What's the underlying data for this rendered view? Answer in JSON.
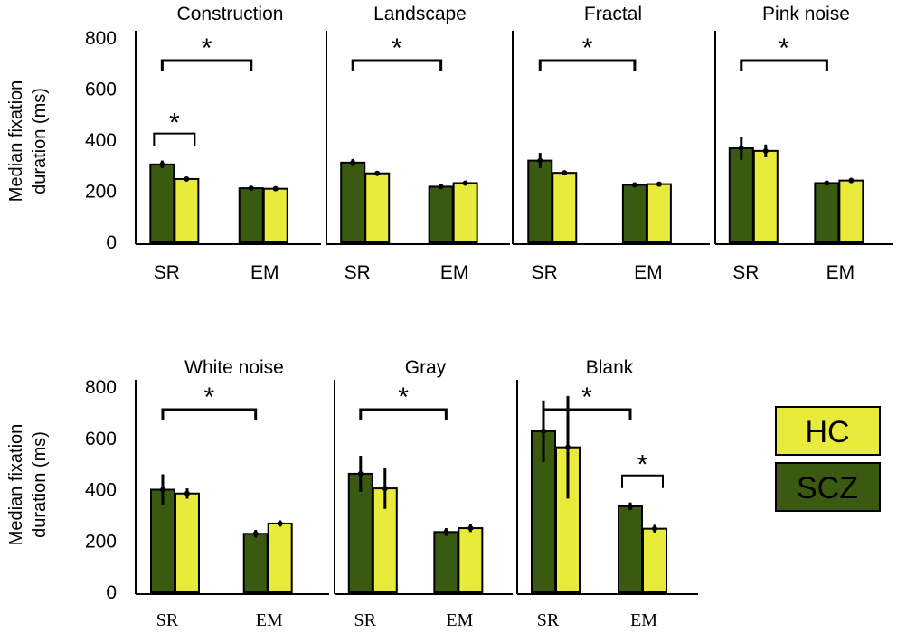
{
  "chart_data": {
    "type": "bar",
    "y_axis_label_line1": "Median fixation",
    "y_axis_label_line2": "duration  (ms)",
    "y_ticks": [
      "800",
      "600",
      "400",
      "200",
      "0"
    ],
    "ylim": [
      0,
      800
    ],
    "categories": [
      "SR",
      "EM"
    ],
    "legend": [
      "HC",
      "SCZ"
    ],
    "colors": {
      "SCZ": "#3a5a12",
      "HC": "#e8ea3c",
      "axis": "#000000"
    },
    "significance_marker": "*",
    "panels": [
      {
        "title": "Construction",
        "SCZ": [
          305,
          212
        ],
        "HC": [
          248,
          210
        ],
        "err_SCZ": [
          15,
          6
        ],
        "err_HC": [
          5,
          5
        ],
        "sig_SR_vs_EM": "*",
        "sig_within_SR": "*",
        "sig_within_EM": ""
      },
      {
        "title": "Landscape",
        "SCZ": [
          312,
          218
        ],
        "HC": [
          270,
          232
        ],
        "err_SCZ": [
          14,
          5
        ],
        "err_HC": [
          5,
          6
        ],
        "sig_SR_vs_EM": "*",
        "sig_within_SR": "",
        "sig_within_EM": ""
      },
      {
        "title": "Fractal",
        "SCZ": [
          320,
          225
        ],
        "HC": [
          272,
          228
        ],
        "err_SCZ": [
          30,
          6
        ],
        "err_HC": [
          6,
          5
        ],
        "sig_SR_vs_EM": "*",
        "sig_within_SR": "",
        "sig_within_EM": ""
      },
      {
        "title": "Pink noise",
        "SCZ": [
          368,
          232
        ],
        "HC": [
          358,
          242
        ],
        "err_SCZ": [
          45,
          8
        ],
        "err_HC": [
          25,
          10
        ],
        "sig_SR_vs_EM": "*",
        "sig_within_SR": "",
        "sig_within_EM": ""
      },
      {
        "title": "White noise",
        "SCZ": [
          400,
          228
        ],
        "HC": [
          385,
          268
        ],
        "err_SCZ": [
          60,
          15
        ],
        "err_HC": [
          20,
          12
        ],
        "sig_SR_vs_EM": "*",
        "sig_within_SR": "",
        "sig_within_EM": ""
      },
      {
        "title": "Gray",
        "SCZ": [
          462,
          235
        ],
        "HC": [
          405,
          250
        ],
        "err_SCZ": [
          70,
          15
        ],
        "err_HC": [
          80,
          15
        ],
        "sig_SR_vs_EM": "*",
        "sig_within_SR": "",
        "sig_within_EM": ""
      },
      {
        "title": "Blank",
        "SCZ": [
          628,
          335
        ],
        "HC": [
          565,
          248
        ],
        "err_SCZ": [
          120,
          15
        ],
        "err_HC": [
          200,
          15
        ],
        "sig_SR_vs_EM": "*",
        "sig_within_SR": "",
        "sig_within_EM": "*"
      }
    ]
  }
}
